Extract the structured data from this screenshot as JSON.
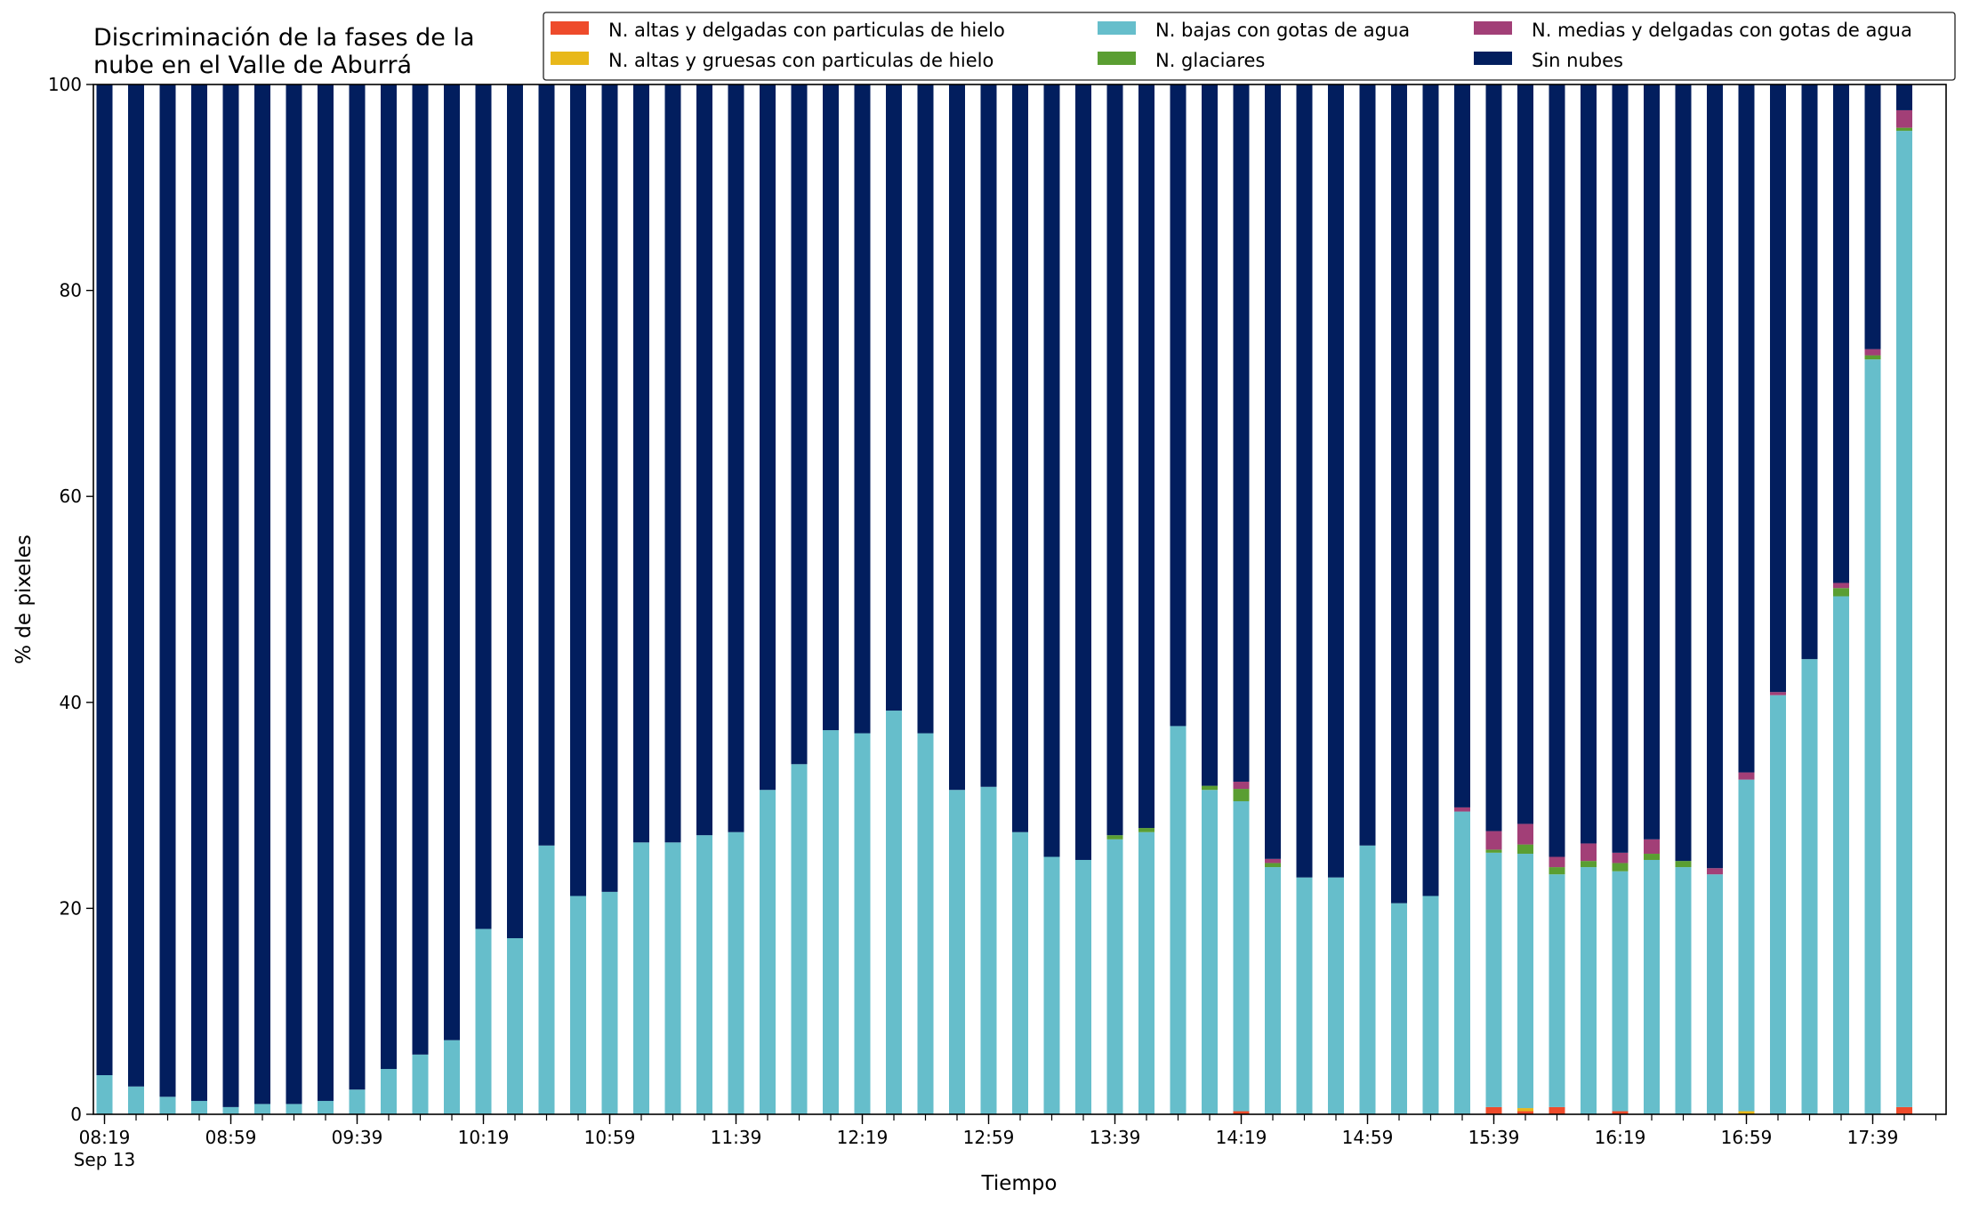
{
  "chart_data": {
    "type": "bar",
    "stacked": true,
    "title": [
      "Discriminación de la fases de la",
      "nube en el Valle de Aburrá"
    ],
    "xlabel": "Tiempo",
    "ylabel": "% de pixeles",
    "ylim": [
      0,
      100
    ],
    "yticks": [
      0,
      20,
      40,
      60,
      80,
      100
    ],
    "grid": false,
    "legend_position": "top-right",
    "xticks": [
      {
        "index": 0,
        "label": "08:19",
        "sublabel": "Sep 13"
      },
      {
        "index": 4,
        "label": "08:59"
      },
      {
        "index": 8,
        "label": "09:39"
      },
      {
        "index": 12,
        "label": "10:19"
      },
      {
        "index": 16,
        "label": "10:59"
      },
      {
        "index": 20,
        "label": "11:39"
      },
      {
        "index": 24,
        "label": "12:19"
      },
      {
        "index": 28,
        "label": "12:59"
      },
      {
        "index": 32,
        "label": "13:39"
      },
      {
        "index": 36,
        "label": "14:19"
      },
      {
        "index": 40,
        "label": "14:59"
      },
      {
        "index": 44,
        "label": "15:39"
      },
      {
        "index": 48,
        "label": "16:19"
      },
      {
        "index": 52,
        "label": "16:59"
      },
      {
        "index": 56,
        "label": "17:39"
      }
    ],
    "categories": [
      "08:19",
      "08:29",
      "08:39",
      "08:49",
      "08:59",
      "09:09",
      "09:19",
      "09:29",
      "09:39",
      "09:49",
      "09:59",
      "10:09",
      "10:19",
      "10:29",
      "10:39",
      "10:49",
      "10:59",
      "11:09",
      "11:19",
      "11:29",
      "11:39",
      "11:49",
      "11:59",
      "12:09",
      "12:19",
      "12:29",
      "12:39",
      "12:49",
      "12:59",
      "13:09",
      "13:19",
      "13:29",
      "13:39",
      "13:49",
      "13:59",
      "14:09",
      "14:19",
      "14:29",
      "14:39",
      "14:49",
      "14:59",
      "15:09",
      "15:19",
      "15:29",
      "15:39",
      "15:49",
      "15:59",
      "16:09",
      "16:19",
      "16:29",
      "16:39",
      "16:49",
      "16:59",
      "17:09",
      "17:19",
      "17:29",
      "17:39",
      "17:49"
    ],
    "series": [
      {
        "name": "N. altas y delgadas con particulas de hielo",
        "color": "#EE4B2B",
        "values": [
          0,
          0,
          0,
          0,
          0,
          0,
          0,
          0,
          0,
          0,
          0,
          0,
          0,
          0,
          0,
          0,
          0,
          0,
          0,
          0,
          0,
          0,
          0,
          0,
          0,
          0,
          0,
          0,
          0,
          0,
          0,
          0,
          0,
          0,
          0,
          0,
          0.3,
          0,
          0,
          0,
          0,
          0,
          0,
          0,
          0.7,
          0.3,
          0.7,
          0,
          0.3,
          0,
          0,
          0,
          0,
          0,
          0,
          0,
          0,
          0.7
        ]
      },
      {
        "name": "N. altas y gruesas con particulas de hielo",
        "color": "#E8B81A",
        "values": [
          0,
          0,
          0,
          0,
          0,
          0,
          0,
          0,
          0,
          0,
          0,
          0,
          0,
          0,
          0,
          0,
          0,
          0,
          0,
          0,
          0,
          0,
          0,
          0,
          0,
          0,
          0,
          0,
          0,
          0,
          0,
          0,
          0,
          0,
          0,
          0,
          0,
          0,
          0,
          0,
          0,
          0,
          0,
          0,
          0,
          0.3,
          0,
          0,
          0,
          0,
          0,
          0,
          0.3,
          0,
          0,
          0,
          0,
          0
        ]
      },
      {
        "name": "N. bajas con gotas de agua",
        "color": "#66BECB",
        "values": [
          3.8,
          2.7,
          1.7,
          1.3,
          0.7,
          1.0,
          1.0,
          1.3,
          2.4,
          4.4,
          5.8,
          7.2,
          18.0,
          17.1,
          26.1,
          21.2,
          21.6,
          26.4,
          26.4,
          27.1,
          27.4,
          31.5,
          34.0,
          37.3,
          37.0,
          39.2,
          37.0,
          31.5,
          31.8,
          27.4,
          25.0,
          24.7,
          26.7,
          27.4,
          37.7,
          31.5,
          30.1,
          24.0,
          23.0,
          23.0,
          26.1,
          20.5,
          21.2,
          29.4,
          24.7,
          24.7,
          22.6,
          24.0,
          23.3,
          24.7,
          24.0,
          23.3,
          32.2,
          40.7,
          44.2,
          50.3,
          73.3,
          94.8
        ]
      },
      {
        "name": "N. glaciares",
        "color": "#5A9E32",
        "values": [
          0,
          0,
          0,
          0,
          0,
          0,
          0,
          0,
          0,
          0,
          0,
          0,
          0,
          0,
          0,
          0,
          0,
          0,
          0,
          0,
          0,
          0,
          0,
          0,
          0,
          0,
          0,
          0,
          0,
          0,
          0,
          0,
          0.4,
          0.4,
          0,
          0.4,
          1.2,
          0.4,
          0,
          0,
          0,
          0,
          0,
          0,
          0.3,
          0.9,
          0.7,
          0.6,
          0.8,
          0.6,
          0.6,
          0,
          0,
          0,
          0,
          0.8,
          0.4,
          0.3
        ]
      },
      {
        "name": "N. medias y delgadas con gotas de agua",
        "color": "#A23F77",
        "values": [
          0,
          0,
          0,
          0,
          0,
          0,
          0,
          0,
          0,
          0,
          0,
          0,
          0,
          0,
          0,
          0,
          0,
          0,
          0,
          0,
          0,
          0,
          0,
          0,
          0,
          0,
          0,
          0,
          0,
          0,
          0,
          0,
          0,
          0,
          0,
          0,
          0.7,
          0.4,
          0,
          0,
          0,
          0,
          0,
          0.4,
          1.8,
          2.0,
          1.0,
          1.7,
          1.0,
          1.4,
          0,
          0.6,
          0.7,
          0.3,
          0,
          0.5,
          0.6,
          1.7
        ]
      },
      {
        "name": "Sin nubes",
        "color": "#021E5E",
        "values": [
          96.2,
          97.3,
          98.3,
          98.7,
          99.3,
          99.0,
          99.0,
          98.7,
          97.6,
          95.6,
          94.2,
          92.8,
          82.0,
          82.9,
          73.9,
          78.8,
          78.4,
          73.6,
          73.6,
          72.9,
          72.6,
          68.5,
          66.0,
          62.7,
          63.0,
          60.8,
          63.0,
          68.5,
          68.2,
          72.6,
          75.0,
          75.3,
          72.9,
          72.2,
          62.3,
          68.1,
          67.7,
          75.2,
          77.0,
          77.0,
          73.9,
          79.5,
          78.8,
          70.2,
          72.5,
          71.8,
          75.0,
          73.7,
          74.6,
          73.3,
          75.4,
          76.1,
          66.8,
          59.0,
          55.8,
          48.4,
          25.7,
          2.5
        ]
      }
    ]
  }
}
